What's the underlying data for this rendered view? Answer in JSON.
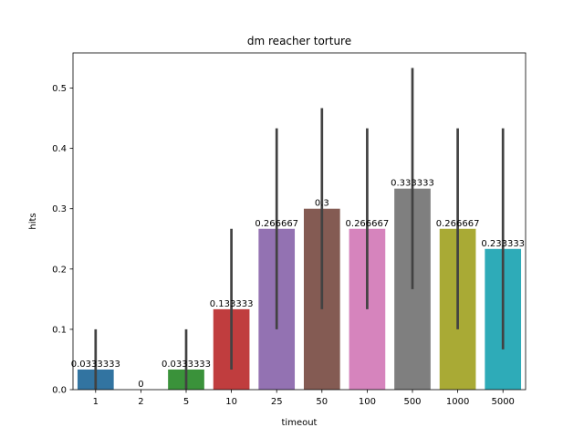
{
  "chart_data": {
    "type": "bar",
    "title": "dm reacher torture",
    "xlabel": "timeout",
    "ylabel": "hits",
    "categories": [
      "1",
      "2",
      "5",
      "10",
      "25",
      "50",
      "100",
      "500",
      "1000",
      "5000"
    ],
    "values": [
      0.0333333,
      0,
      0.0333333,
      0.133333,
      0.266667,
      0.3,
      0.266667,
      0.333333,
      0.266667,
      0.233333
    ],
    "data_labels": [
      "0.0333333",
      "0",
      "0.0333333",
      "0.133333",
      "0.266667",
      "0.3",
      "0.266667",
      "0.333333",
      "0.266667",
      "0.233333"
    ],
    "error_low": [
      0,
      0,
      0,
      0.0333,
      0.1,
      0.1333,
      0.1333,
      0.1667,
      0.1,
      0.0667
    ],
    "error_high": [
      0.1,
      0,
      0.1,
      0.2667,
      0.4333,
      0.4667,
      0.4333,
      0.5333,
      0.4333,
      0.4333
    ],
    "colors": [
      "#3274a1",
      "#e1812c",
      "#3a923a",
      "#c03d3e",
      "#9372b2",
      "#845b53",
      "#d684bd",
      "#7f7f7f",
      "#a9aa35",
      "#2eabb8"
    ],
    "error_color": "#424242",
    "ylim": [
      0,
      0.5583
    ],
    "yticks": [
      0.0,
      0.1,
      0.2,
      0.3,
      0.4,
      0.5
    ],
    "ytick_labels": [
      "0.0",
      "0.1",
      "0.2",
      "0.3",
      "0.4",
      "0.5"
    ],
    "grid": false,
    "legend": "none"
  }
}
